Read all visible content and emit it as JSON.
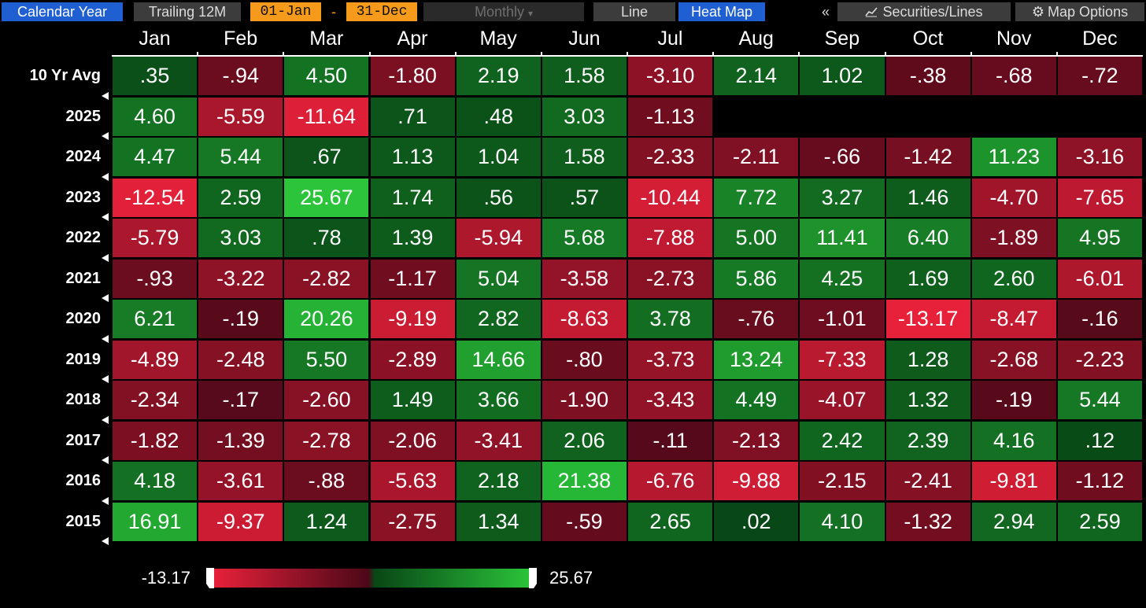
{
  "toolbar": {
    "calendar_year": "Calendar Year",
    "trailing": "Trailing 12M",
    "date_from": "01-Jan",
    "date_sep": "-",
    "date_to": "31-Dec",
    "frequency": "Monthly",
    "frequency_arrow": "▾",
    "line": "Line",
    "heat_map": "Heat Map",
    "collapse": "«",
    "securities": "Securities/Lines",
    "map_options": "Map Options"
  },
  "colors": {
    "neg_max": "#e8213a",
    "pos_max": "#2bc43a",
    "neg_dark": "#4c0818",
    "pos_dark": "#084616"
  },
  "icons": {
    "securities": "line-chart-icon",
    "map_options": "gear-icon"
  },
  "chart_data": {
    "type": "heatmap",
    "columns": [
      "Jan",
      "Feb",
      "Mar",
      "Apr",
      "May",
      "Jun",
      "Jul",
      "Aug",
      "Sep",
      "Oct",
      "Nov",
      "Dec"
    ],
    "rows": [
      {
        "label": "10 Yr Avg",
        "values": [
          ".35",
          "-.94",
          "4.50",
          "-1.80",
          "2.19",
          "1.58",
          "-3.10",
          "2.14",
          "1.02",
          "-.38",
          "-.68",
          "-.72"
        ]
      },
      {
        "label": "2025",
        "values": [
          "4.60",
          "-5.59",
          "-11.64",
          ".71",
          ".48",
          "3.03",
          "-1.13"
        ]
      },
      {
        "label": "2024",
        "values": [
          "4.47",
          "5.44",
          ".67",
          "1.13",
          "1.04",
          "1.58",
          "-2.33",
          "-2.11",
          "-.66",
          "-1.42",
          "11.23",
          "-3.16"
        ]
      },
      {
        "label": "2023",
        "values": [
          "-12.54",
          "2.59",
          "25.67",
          "1.74",
          ".56",
          ".57",
          "-10.44",
          "7.72",
          "3.27",
          "1.46",
          "-4.70",
          "-7.65"
        ]
      },
      {
        "label": "2022",
        "values": [
          "-5.79",
          "3.03",
          ".78",
          "1.39",
          "-5.94",
          "5.68",
          "-7.88",
          "5.00",
          "11.41",
          "6.40",
          "-1.89",
          "4.95"
        ]
      },
      {
        "label": "2021",
        "values": [
          "-.93",
          "-3.22",
          "-2.82",
          "-1.17",
          "5.04",
          "-3.58",
          "-2.73",
          "5.86",
          "4.25",
          "1.69",
          "2.60",
          "-6.01"
        ]
      },
      {
        "label": "2020",
        "values": [
          "6.21",
          "-.19",
          "20.26",
          "-9.19",
          "2.82",
          "-8.63",
          "3.78",
          "-.76",
          "-1.01",
          "-13.17",
          "-8.47",
          "-.16"
        ]
      },
      {
        "label": "2019",
        "values": [
          "-4.89",
          "-2.48",
          "5.50",
          "-2.89",
          "14.66",
          "-.80",
          "-3.73",
          "13.24",
          "-7.33",
          "1.28",
          "-2.68",
          "-2.23"
        ]
      },
      {
        "label": "2018",
        "values": [
          "-2.34",
          "-.17",
          "-2.60",
          "1.49",
          "3.66",
          "-1.90",
          "-3.43",
          "4.49",
          "-4.07",
          "1.32",
          "-.19",
          "5.44"
        ]
      },
      {
        "label": "2017",
        "values": [
          "-1.82",
          "-1.39",
          "-2.78",
          "-2.06",
          "-3.41",
          "2.06",
          "-.11",
          "-2.13",
          "2.42",
          "2.39",
          "4.16",
          ".12"
        ]
      },
      {
        "label": "2016",
        "values": [
          "4.18",
          "-3.61",
          "-.88",
          "-5.63",
          "2.18",
          "21.38",
          "-6.76",
          "-9.88",
          "-2.15",
          "-2.41",
          "-9.81",
          "-1.12"
        ]
      },
      {
        "label": "2015",
        "values": [
          "16.91",
          "-9.37",
          "1.24",
          "-2.75",
          "1.34",
          "-.59",
          "2.65",
          ".02",
          "4.10",
          "-1.32",
          "2.94",
          "2.59"
        ]
      }
    ],
    "legend": {
      "min": "-13.17",
      "max": "25.67",
      "min_value": -13.17,
      "max_value": 25.67
    }
  }
}
